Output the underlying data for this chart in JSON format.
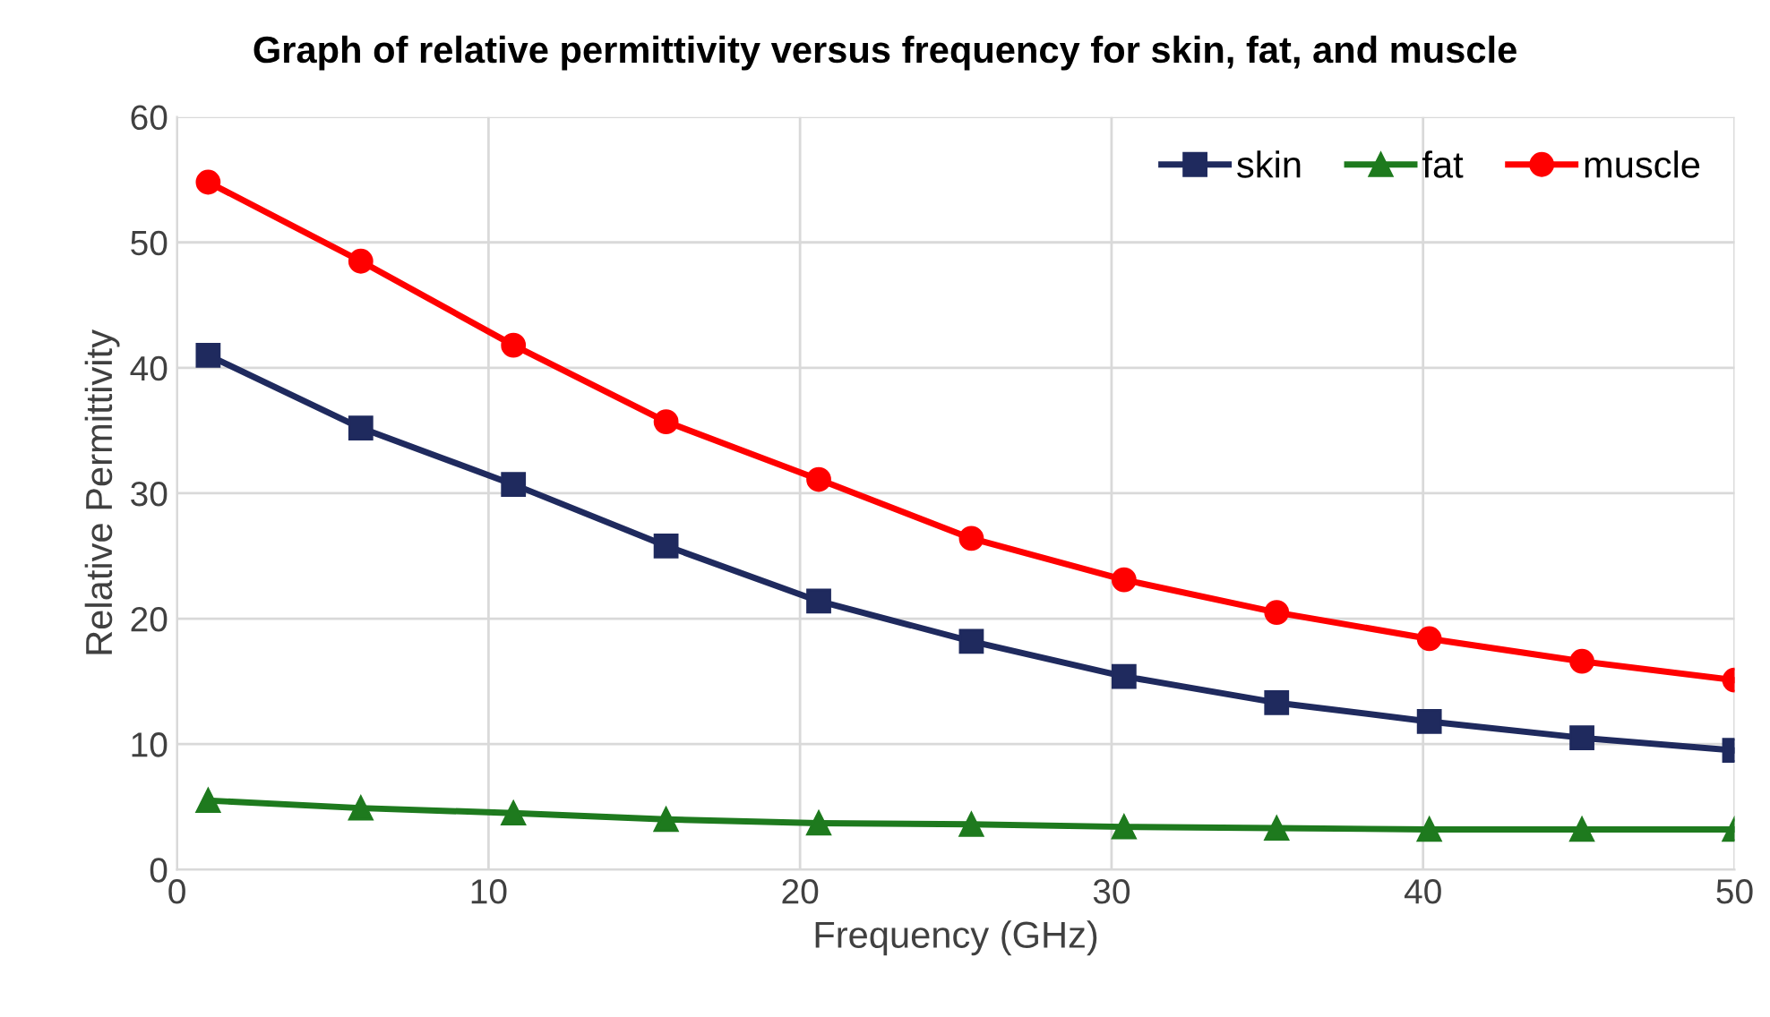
{
  "chart_data": {
    "type": "line",
    "title": "Graph of relative permittivity versus frequency for skin, fat, and muscle",
    "xlabel": "Frequency (GHz)",
    "ylabel": "Relative Permittivity",
    "x": [
      1,
      5.9,
      10.8,
      15.7,
      20.6,
      25.5,
      30.4,
      35.3,
      40.2,
      45.1,
      50
    ],
    "series": [
      {
        "name": "skin",
        "color": "#1f2a5e",
        "marker": "square",
        "values": [
          41.0,
          35.2,
          30.7,
          25.8,
          21.4,
          18.2,
          15.4,
          13.3,
          11.8,
          10.5,
          9.5
        ]
      },
      {
        "name": "fat",
        "color": "#1e7a1e",
        "marker": "triangle",
        "values": [
          5.5,
          4.9,
          4.5,
          4.0,
          3.7,
          3.6,
          3.4,
          3.3,
          3.2,
          3.2,
          3.2
        ]
      },
      {
        "name": "muscle",
        "color": "#ff0000",
        "marker": "circle",
        "values": [
          54.8,
          48.5,
          41.8,
          35.7,
          31.1,
          26.4,
          23.1,
          20.5,
          18.4,
          16.6,
          15.1
        ]
      }
    ],
    "xlim": [
      0,
      50
    ],
    "xticks": [
      0,
      10,
      20,
      30,
      40,
      50
    ],
    "ylim": [
      0,
      60
    ],
    "yticks": [
      0,
      10,
      20,
      30,
      40,
      50,
      60
    ],
    "grid": true,
    "legend": "top right",
    "line_style": "solid"
  }
}
